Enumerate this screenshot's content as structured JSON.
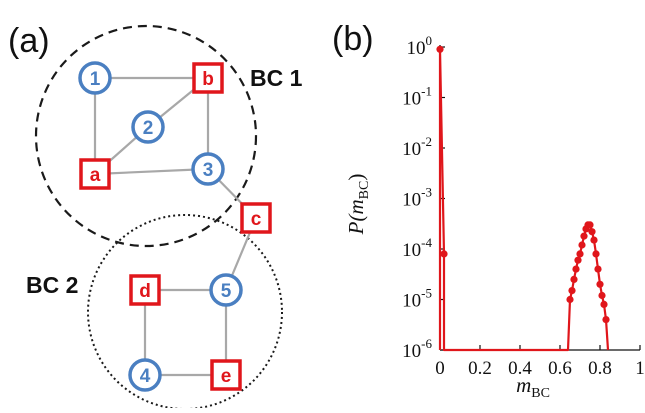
{
  "panel_a": {
    "label": "(a)",
    "circles": [
      {
        "id": "c1",
        "text": "1"
      },
      {
        "id": "c2",
        "text": "2"
      },
      {
        "id": "c3",
        "text": "3"
      },
      {
        "id": "c4",
        "text": "4"
      },
      {
        "id": "c5",
        "text": "5"
      }
    ],
    "squares": [
      {
        "id": "sa",
        "text": "a"
      },
      {
        "id": "sb",
        "text": "b"
      },
      {
        "id": "sc",
        "text": "c"
      },
      {
        "id": "sd",
        "text": "d"
      },
      {
        "id": "se",
        "text": "e"
      }
    ],
    "bc_labels": {
      "bc1": "BC 1",
      "bc2": "BC 2"
    },
    "colors": {
      "circle": "#4a7fc1",
      "square": "#e0161b",
      "edge": "#a8a8a8",
      "boundary": "#1a1a1a"
    }
  },
  "panel_b": {
    "label": "(b)",
    "xlabel_main": "m",
    "xlabel_sub": "BC",
    "ylabel": "P(m",
    "ylabel_sub": "BC",
    "ylabel_close": ")",
    "color": "#e0161b"
  },
  "chart_data": {
    "type": "line",
    "title": "",
    "xlabel": "m_BC",
    "ylabel": "P(m_BC)",
    "xlim": [
      0,
      1
    ],
    "ylim": [
      1e-06,
      1
    ],
    "yscale": "log",
    "x_ticks": [
      "0",
      "0.2",
      "0.4",
      "0.6",
      "0.8",
      "1"
    ],
    "y_ticks": [
      {
        "base": "10",
        "exp": "0"
      },
      {
        "base": "10",
        "exp": "-1"
      },
      {
        "base": "10",
        "exp": "-2"
      },
      {
        "base": "10",
        "exp": "-3"
      },
      {
        "base": "10",
        "exp": "-4"
      },
      {
        "base": "10",
        "exp": "-5"
      },
      {
        "base": "10",
        "exp": "-6"
      }
    ],
    "series": [
      {
        "x": [
          0.0,
          0.0,
          0.02,
          0.02,
          0.64,
          0.65,
          0.66,
          0.67,
          0.68,
          0.69,
          0.7,
          0.71,
          0.72,
          0.73,
          0.74,
          0.75,
          0.76,
          0.77,
          0.78,
          0.79,
          0.8,
          0.81,
          0.82,
          0.83,
          0.84
        ],
        "y": [
          1e-06,
          0.9,
          8e-05,
          1e-06,
          1e-06,
          1e-05,
          1.5e-05,
          2.5e-05,
          4e-05,
          6e-05,
          8e-05,
          0.00012,
          0.00018,
          0.00025,
          0.0003,
          0.0003,
          0.00022,
          0.00015,
          8e-05,
          4e-05,
          2e-05,
          1.2e-05,
          8e-06,
          4e-06,
          1e-06
        ]
      }
    ]
  }
}
